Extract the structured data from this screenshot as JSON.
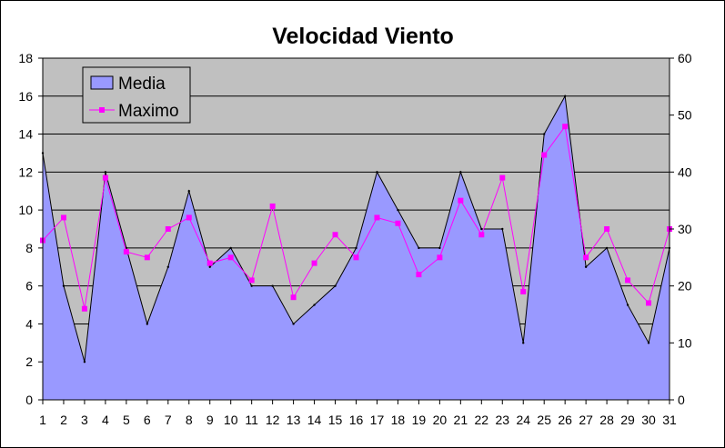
{
  "chart_data": {
    "type": "area",
    "title": "Velocidad Viento",
    "categories": [
      "1",
      "2",
      "3",
      "4",
      "5",
      "6",
      "7",
      "8",
      "9",
      "10",
      "11",
      "12",
      "13",
      "14",
      "15",
      "16",
      "17",
      "18",
      "19",
      "20",
      "21",
      "22",
      "23",
      "24",
      "25",
      "26",
      "27",
      "28",
      "29",
      "30",
      "31"
    ],
    "series": [
      {
        "name": "Media",
        "type": "area",
        "axis": "left",
        "values": [
          13,
          6,
          2,
          12,
          8,
          4,
          7,
          11,
          7,
          8,
          6,
          6,
          4,
          5,
          6,
          8,
          12,
          10,
          8,
          8,
          12,
          9,
          9,
          3,
          14,
          16,
          7,
          8,
          5,
          3,
          8
        ]
      },
      {
        "name": "Maximo",
        "type": "line",
        "axis": "right",
        "values": [
          28,
          32,
          16,
          39,
          26,
          25,
          30,
          32,
          24,
          25,
          21,
          34,
          18,
          24,
          29,
          25,
          32,
          31,
          22,
          25,
          35,
          29,
          39,
          19,
          43,
          48,
          25,
          30,
          21,
          17,
          30
        ]
      }
    ],
    "y_left": {
      "range": [
        0,
        18
      ],
      "ticks": [
        0,
        2,
        4,
        6,
        8,
        10,
        12,
        14,
        16,
        18
      ]
    },
    "y_right": {
      "range": [
        0,
        60
      ],
      "ticks": [
        0,
        10,
        20,
        30,
        40,
        50,
        60
      ]
    },
    "grid": true,
    "legend_position": "top-left",
    "colors": {
      "plot_background": "#c0c0c0",
      "media_fill": "#9999ff",
      "maximo_line": "#ff00ff",
      "gridline": "#000000"
    }
  }
}
